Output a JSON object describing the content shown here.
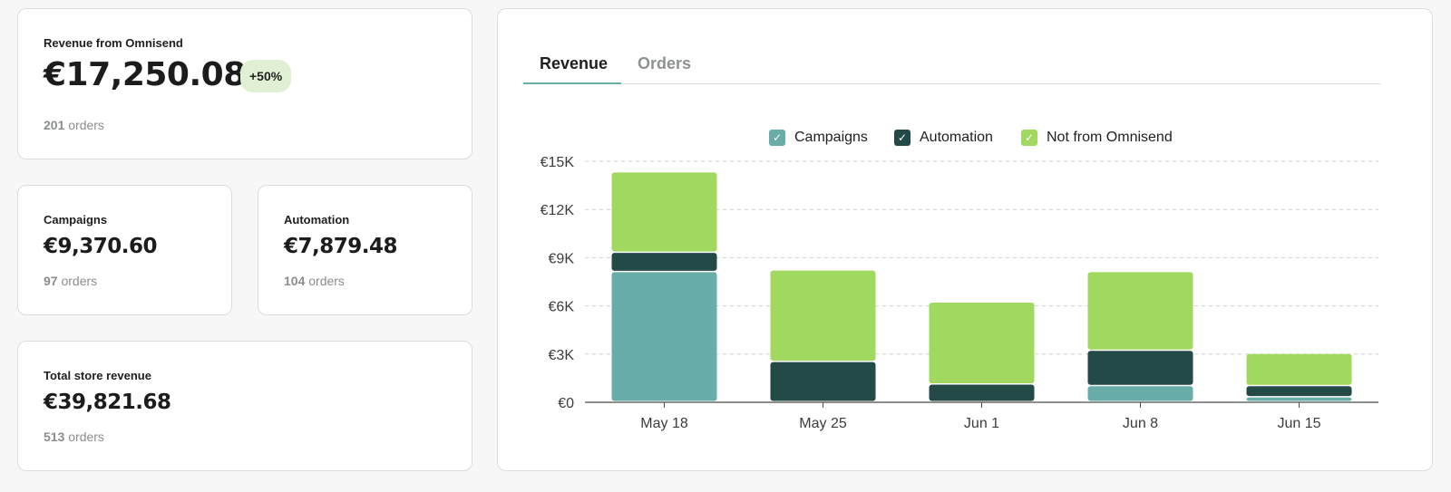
{
  "summary": {
    "omnisend": {
      "title": "Revenue from Omnisend",
      "value": "€17,250.08",
      "badge": "+50%",
      "orders_count": "201",
      "orders_label": "orders"
    },
    "campaigns": {
      "title": "Campaigns",
      "value": "€9,370.60",
      "orders_count": "97",
      "orders_label": "orders"
    },
    "automation": {
      "title": "Automation",
      "value": "€7,879.48",
      "orders_count": "104",
      "orders_label": "orders"
    },
    "total": {
      "title": "Total store revenue",
      "value": "€39,821.68",
      "orders_count": "513",
      "orders_label": "orders"
    }
  },
  "tabs": [
    {
      "label": "Revenue",
      "active": true
    },
    {
      "label": "Orders",
      "active": false
    }
  ],
  "legend": {
    "campaigns": "Campaigns",
    "automation": "Automation",
    "not_from": "Not from Omnisend",
    "check_icon": "check-icon"
  },
  "colors": {
    "campaigns": "#69ada8",
    "automation": "#244a47",
    "not_from": "#a1d85f",
    "badge_bg": "#dff0d4",
    "tab_underline": "#69ada8"
  },
  "chart_data": {
    "type": "bar",
    "stacked": true,
    "categories": [
      "May 18",
      "May 25",
      "Jun 1",
      "Jun 8",
      "Jun 15"
    ],
    "series": [
      {
        "name": "Campaigns",
        "values": [
          8100,
          0,
          0,
          1000,
          300
        ]
      },
      {
        "name": "Automation",
        "values": [
          1200,
          2500,
          1100,
          2200,
          700
        ]
      },
      {
        "name": "Not from Omnisend",
        "values": [
          5000,
          5700,
          5100,
          4900,
          2000
        ]
      }
    ],
    "ylim": [
      0,
      15000
    ],
    "yticks": [
      0,
      3000,
      6000,
      9000,
      12000,
      15000
    ],
    "ytick_labels": [
      "€0",
      "€3K",
      "€6K",
      "€9K",
      "€12K",
      "€15K"
    ],
    "grid": true,
    "legend_position": "top-center"
  }
}
